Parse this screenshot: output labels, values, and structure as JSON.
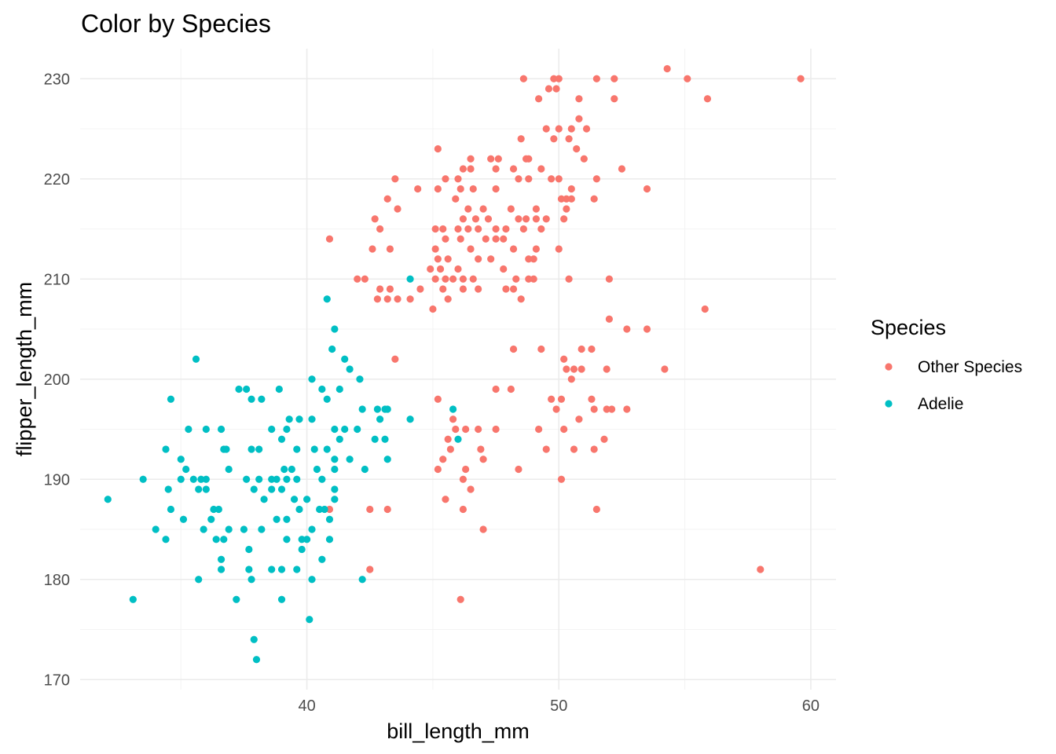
{
  "chart_data": {
    "type": "scatter",
    "title": "Color by Species",
    "xlabel": "bill_length_mm",
    "ylabel": "flipper_length_mm",
    "xlim": [
      31,
      61
    ],
    "ylim": [
      169,
      233
    ],
    "x_ticks": [
      40,
      50,
      60
    ],
    "y_ticks": [
      170,
      180,
      190,
      200,
      210,
      220,
      230
    ],
    "grid": true,
    "legend": {
      "title": "Species",
      "position": "right"
    },
    "series": [
      {
        "name": "Other Species",
        "color": "#F8766D",
        "points": [
          [
            48.6,
            230
          ],
          [
            49.8,
            230
          ],
          [
            50.0,
            230
          ],
          [
            51.5,
            230
          ],
          [
            52.2,
            230
          ],
          [
            59.6,
            230
          ],
          [
            54.3,
            231
          ],
          [
            55.1,
            230
          ],
          [
            55.9,
            228
          ],
          [
            49.2,
            228
          ],
          [
            49.6,
            229
          ],
          [
            49.9,
            229
          ],
          [
            50.8,
            228
          ],
          [
            52.2,
            228
          ],
          [
            50.8,
            226
          ],
          [
            49.5,
            225
          ],
          [
            50.0,
            225
          ],
          [
            50.5,
            225
          ],
          [
            51.1,
            225
          ],
          [
            49.8,
            224
          ],
          [
            50.4,
            224
          ],
          [
            48.5,
            224
          ],
          [
            51.0,
            222
          ],
          [
            50.7,
            223
          ],
          [
            45.2,
            223
          ],
          [
            46.5,
            222
          ],
          [
            47.3,
            222
          ],
          [
            47.6,
            222
          ],
          [
            48.7,
            222
          ],
          [
            48.8,
            222
          ],
          [
            52.5,
            221
          ],
          [
            46.2,
            221
          ],
          [
            46.5,
            221
          ],
          [
            47.5,
            221
          ],
          [
            49.3,
            221
          ],
          [
            48.2,
            221
          ],
          [
            43.5,
            220
          ],
          [
            45.5,
            220
          ],
          [
            46.0,
            220
          ],
          [
            48.8,
            220
          ],
          [
            48.4,
            220
          ],
          [
            49.7,
            220
          ],
          [
            51.5,
            220
          ],
          [
            50.0,
            220
          ],
          [
            53.5,
            219
          ],
          [
            44.4,
            219
          ],
          [
            45.2,
            219
          ],
          [
            46.1,
            219
          ],
          [
            46.6,
            219
          ],
          [
            47.5,
            219
          ],
          [
            50.5,
            219
          ],
          [
            43.2,
            218
          ],
          [
            45.9,
            218
          ],
          [
            50.1,
            218
          ],
          [
            50.3,
            218
          ],
          [
            50.5,
            218
          ],
          [
            51.4,
            218
          ],
          [
            43.6,
            217
          ],
          [
            46.4,
            217
          ],
          [
            47.0,
            217
          ],
          [
            48.1,
            217
          ],
          [
            49.1,
            217
          ],
          [
            50.3,
            217
          ],
          [
            42.7,
            216
          ],
          [
            46.2,
            216
          ],
          [
            46.7,
            216
          ],
          [
            47.2,
            216
          ],
          [
            48.4,
            216
          ],
          [
            48.7,
            216
          ],
          [
            49.1,
            216
          ],
          [
            49.5,
            216
          ],
          [
            50.2,
            216
          ],
          [
            42.9,
            215
          ],
          [
            45.1,
            215
          ],
          [
            45.4,
            215
          ],
          [
            46.0,
            215
          ],
          [
            46.4,
            215
          ],
          [
            46.8,
            215
          ],
          [
            47.5,
            215
          ],
          [
            47.9,
            215
          ],
          [
            48.6,
            215
          ],
          [
            49.3,
            215
          ],
          [
            40.9,
            214
          ],
          [
            45.5,
            214
          ],
          [
            46.1,
            214
          ],
          [
            47.1,
            214
          ],
          [
            47.5,
            214
          ],
          [
            47.8,
            214
          ],
          [
            42.6,
            213
          ],
          [
            43.3,
            213
          ],
          [
            45.1,
            213
          ],
          [
            46.5,
            213
          ],
          [
            49.1,
            213
          ],
          [
            50.0,
            213
          ],
          [
            48.2,
            213
          ],
          [
            45.2,
            212
          ],
          [
            45.6,
            212
          ],
          [
            46.8,
            212
          ],
          [
            47.3,
            212
          ],
          [
            48.8,
            212
          ],
          [
            49.0,
            212
          ],
          [
            44.9,
            211
          ],
          [
            45.3,
            211
          ],
          [
            46.0,
            211
          ],
          [
            47.8,
            211
          ],
          [
            42.0,
            210
          ],
          [
            42.3,
            210
          ],
          [
            45.1,
            210
          ],
          [
            45.5,
            210
          ],
          [
            45.8,
            210
          ],
          [
            46.2,
            210
          ],
          [
            46.6,
            210
          ],
          [
            48.3,
            210
          ],
          [
            48.8,
            210
          ],
          [
            49.0,
            210
          ],
          [
            50.4,
            210
          ],
          [
            52.0,
            210
          ],
          [
            42.9,
            209
          ],
          [
            43.3,
            209
          ],
          [
            44.5,
            209
          ],
          [
            45.4,
            209
          ],
          [
            46.2,
            209
          ],
          [
            46.8,
            209
          ],
          [
            47.9,
            209
          ],
          [
            48.2,
            209
          ],
          [
            42.8,
            208
          ],
          [
            43.2,
            208
          ],
          [
            43.6,
            208
          ],
          [
            44.1,
            208
          ],
          [
            45.6,
            208
          ],
          [
            48.5,
            208
          ],
          [
            45.0,
            207
          ],
          [
            55.8,
            207
          ],
          [
            52.0,
            206
          ],
          [
            52.7,
            205
          ],
          [
            53.5,
            205
          ],
          [
            48.2,
            203
          ],
          [
            49.3,
            203
          ],
          [
            50.9,
            203
          ],
          [
            51.3,
            203
          ],
          [
            43.5,
            202
          ],
          [
            50.2,
            202
          ],
          [
            50.3,
            201
          ],
          [
            50.6,
            201
          ],
          [
            50.9,
            201
          ],
          [
            51.9,
            201
          ],
          [
            54.2,
            201
          ],
          [
            50.5,
            200
          ],
          [
            47.5,
            199
          ],
          [
            48.1,
            199
          ],
          [
            45.2,
            198
          ],
          [
            49.7,
            198
          ],
          [
            50.1,
            198
          ],
          [
            51.3,
            198
          ],
          [
            49.9,
            197
          ],
          [
            51.4,
            197
          ],
          [
            51.9,
            197
          ],
          [
            52.1,
            197
          ],
          [
            52.7,
            197
          ],
          [
            45.8,
            196
          ],
          [
            50.8,
            196
          ],
          [
            45.9,
            195
          ],
          [
            46.3,
            195
          ],
          [
            46.8,
            195
          ],
          [
            47.5,
            195
          ],
          [
            49.2,
            195
          ],
          [
            50.2,
            195
          ],
          [
            45.6,
            194
          ],
          [
            51.8,
            194
          ],
          [
            45.7,
            193
          ],
          [
            46.9,
            193
          ],
          [
            49.5,
            193
          ],
          [
            50.6,
            193
          ],
          [
            51.4,
            193
          ],
          [
            45.4,
            192
          ],
          [
            47.0,
            192
          ],
          [
            45.2,
            191
          ],
          [
            46.3,
            191
          ],
          [
            48.4,
            191
          ],
          [
            46.2,
            190
          ],
          [
            50.1,
            190
          ],
          [
            46.5,
            189
          ],
          [
            45.5,
            188
          ],
          [
            40.9,
            187
          ],
          [
            42.5,
            187
          ],
          [
            43.2,
            187
          ],
          [
            46.2,
            187
          ],
          [
            51.5,
            187
          ],
          [
            47.0,
            185
          ],
          [
            42.5,
            181
          ],
          [
            58.0,
            181
          ],
          [
            46.1,
            178
          ]
        ]
      },
      {
        "name": "Adelie",
        "color": "#00BFC4",
        "points": [
          [
            44.1,
            210
          ],
          [
            40.8,
            208
          ],
          [
            41.1,
            205
          ],
          [
            41.0,
            203
          ],
          [
            35.6,
            202
          ],
          [
            41.5,
            202
          ],
          [
            41.7,
            201
          ],
          [
            40.2,
            200
          ],
          [
            42.1,
            200
          ],
          [
            37.3,
            199
          ],
          [
            37.6,
            199
          ],
          [
            38.9,
            199
          ],
          [
            40.6,
            199
          ],
          [
            41.3,
            199
          ],
          [
            34.6,
            198
          ],
          [
            37.8,
            198
          ],
          [
            38.2,
            198
          ],
          [
            40.8,
            198
          ],
          [
            42.2,
            197
          ],
          [
            43.1,
            197
          ],
          [
            43.2,
            197
          ],
          [
            45.8,
            197
          ],
          [
            42.8,
            197
          ],
          [
            39.3,
            196
          ],
          [
            39.7,
            196
          ],
          [
            40.2,
            196
          ],
          [
            42.9,
            196
          ],
          [
            44.1,
            196
          ],
          [
            35.3,
            195
          ],
          [
            36.0,
            195
          ],
          [
            36.6,
            195
          ],
          [
            38.6,
            195
          ],
          [
            39.2,
            195
          ],
          [
            41.1,
            195
          ],
          [
            41.5,
            195
          ],
          [
            42.0,
            195
          ],
          [
            39.0,
            194
          ],
          [
            41.3,
            194
          ],
          [
            42.7,
            194
          ],
          [
            43.1,
            194
          ],
          [
            46.0,
            194
          ],
          [
            34.4,
            193
          ],
          [
            36.7,
            193
          ],
          [
            36.8,
            193
          ],
          [
            37.8,
            193
          ],
          [
            38.1,
            193
          ],
          [
            39.6,
            193
          ],
          [
            40.3,
            193
          ],
          [
            40.8,
            193
          ],
          [
            35.0,
            192
          ],
          [
            41.1,
            192
          ],
          [
            41.7,
            192
          ],
          [
            43.2,
            192
          ],
          [
            35.2,
            191
          ],
          [
            36.9,
            191
          ],
          [
            39.1,
            191
          ],
          [
            39.4,
            191
          ],
          [
            40.4,
            191
          ],
          [
            41.1,
            191
          ],
          [
            42.3,
            191
          ],
          [
            33.5,
            190
          ],
          [
            35.0,
            190
          ],
          [
            35.5,
            190
          ],
          [
            35.8,
            190
          ],
          [
            36.0,
            190
          ],
          [
            37.6,
            190
          ],
          [
            38.1,
            190
          ],
          [
            38.6,
            190
          ],
          [
            38.8,
            190
          ],
          [
            39.2,
            190
          ],
          [
            39.6,
            190
          ],
          [
            40.6,
            190
          ],
          [
            34.5,
            189
          ],
          [
            35.7,
            189
          ],
          [
            36.0,
            189
          ],
          [
            37.9,
            189
          ],
          [
            38.6,
            189
          ],
          [
            39.0,
            189
          ],
          [
            41.1,
            189
          ],
          [
            32.1,
            188
          ],
          [
            38.3,
            188
          ],
          [
            39.5,
            188
          ],
          [
            40.0,
            188
          ],
          [
            41.1,
            188
          ],
          [
            34.6,
            187
          ],
          [
            36.3,
            187
          ],
          [
            36.5,
            187
          ],
          [
            39.7,
            187
          ],
          [
            40.5,
            187
          ],
          [
            40.7,
            187
          ],
          [
            35.1,
            186
          ],
          [
            36.2,
            186
          ],
          [
            38.8,
            186
          ],
          [
            39.2,
            186
          ],
          [
            40.9,
            186
          ],
          [
            34.0,
            185
          ],
          [
            35.9,
            185
          ],
          [
            36.9,
            185
          ],
          [
            37.5,
            185
          ],
          [
            38.2,
            185
          ],
          [
            40.2,
            185
          ],
          [
            34.4,
            184
          ],
          [
            36.4,
            184
          ],
          [
            36.7,
            184
          ],
          [
            39.2,
            184
          ],
          [
            39.8,
            184
          ],
          [
            40.0,
            184
          ],
          [
            40.9,
            184
          ],
          [
            37.7,
            183
          ],
          [
            39.8,
            183
          ],
          [
            36.6,
            182
          ],
          [
            40.6,
            182
          ],
          [
            36.6,
            181
          ],
          [
            37.7,
            181
          ],
          [
            38.6,
            181
          ],
          [
            39.0,
            181
          ],
          [
            39.6,
            181
          ],
          [
            35.7,
            180
          ],
          [
            37.8,
            180
          ],
          [
            40.2,
            180
          ],
          [
            42.2,
            180
          ],
          [
            33.1,
            178
          ],
          [
            37.2,
            178
          ],
          [
            39.0,
            178
          ],
          [
            40.1,
            176
          ],
          [
            37.9,
            174
          ],
          [
            38.0,
            172
          ]
        ]
      }
    ]
  }
}
